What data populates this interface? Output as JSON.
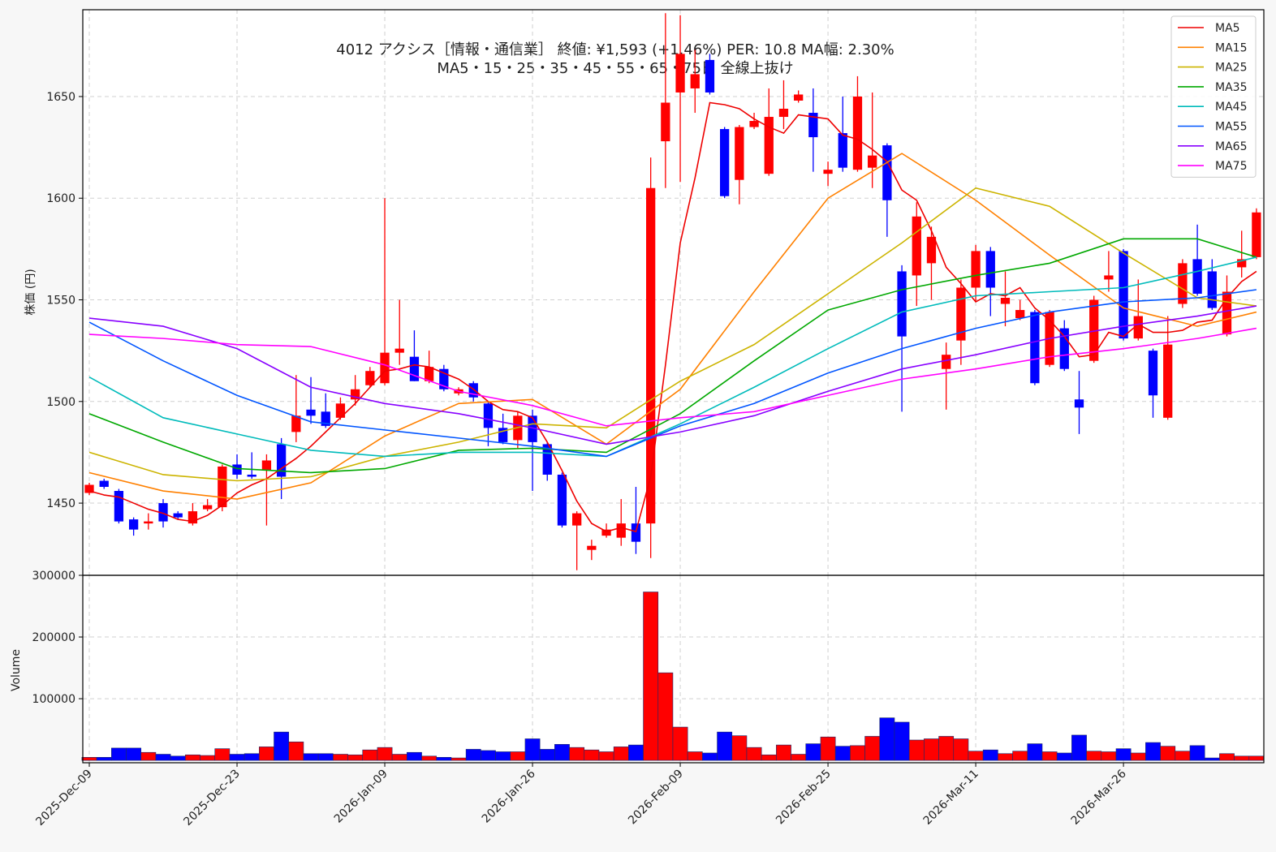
{
  "chart_data": [
    {
      "type": "candlestick",
      "title": "4012  アクシス［情報・通信業］ 終値: ¥1,593 (+1.46%)  PER: 10.8  MA幅: 2.30%",
      "subtitle": "MA5・15・25・35・45・55・65・75日 全線上抜け",
      "ylabel": "株価 (円)",
      "up_color": "#ff0000",
      "down_color": "#0000ff",
      "open": [
        1455,
        1461,
        1456,
        1442,
        1440,
        1450,
        1445,
        1440,
        1447,
        1448,
        1469,
        1464,
        1466,
        1479,
        1485,
        1496,
        1495,
        1492,
        1501,
        1508,
        1509,
        1524,
        1522,
        1510,
        1516,
        1504,
        1509,
        1499,
        1487,
        1481,
        1493,
        1479,
        1464,
        1439,
        1427,
        1434,
        1433,
        1440,
        1440,
        1628,
        1652,
        1654,
        1668,
        1634,
        1609,
        1635,
        1612,
        1640,
        1648,
        1642,
        1612,
        1632,
        1614,
        1615,
        1626,
        1564,
        1562,
        1568,
        1516,
        1530,
        1556,
        1574,
        1548,
        1541,
        1544,
        1518,
        1536,
        1501,
        1520,
        1560,
        1574,
        1531,
        1525,
        1492,
        1548,
        1570,
        1564,
        1533,
        1566,
        1571
      ],
      "high": [
        1460,
        1462,
        1457,
        1443,
        1445,
        1452,
        1446,
        1450,
        1452,
        1469,
        1474,
        1475,
        1474,
        1482,
        1513,
        1512,
        1504,
        1502,
        1513,
        1517,
        1600,
        1550,
        1535,
        1525,
        1518,
        1507,
        1510,
        1500,
        1494,
        1495,
        1496,
        1480,
        1465,
        1446,
        1432,
        1440,
        1452,
        1458,
        1620,
        1691,
        1690,
        1673,
        1671,
        1635,
        1636,
        1642,
        1654,
        1658,
        1653,
        1654,
        1618,
        1650,
        1660,
        1652,
        1627,
        1567,
        1598,
        1586,
        1529,
        1560,
        1577,
        1576,
        1564,
        1550,
        1545,
        1545,
        1540,
        1515,
        1552,
        1574,
        1575,
        1560,
        1526,
        1542,
        1570,
        1587,
        1570,
        1562,
        1584,
        1595
      ],
      "low": [
        1454,
        1457,
        1440,
        1434,
        1437,
        1438,
        1442,
        1439,
        1446,
        1446,
        1462,
        1462,
        1439,
        1452,
        1480,
        1489,
        1487,
        1491,
        1498,
        1507,
        1508,
        1518,
        1510,
        1509,
        1505,
        1503,
        1500,
        1478,
        1479,
        1477,
        1456,
        1461,
        1438,
        1417,
        1422,
        1433,
        1429,
        1425,
        1423,
        1605,
        1608,
        1642,
        1651,
        1600,
        1597,
        1634,
        1611,
        1634,
        1647,
        1613,
        1606,
        1613,
        1613,
        1605,
        1581,
        1495,
        1547,
        1550,
        1496,
        1518,
        1549,
        1542,
        1537,
        1540,
        1508,
        1517,
        1515,
        1484,
        1519,
        1554,
        1530,
        1530,
        1492,
        1491,
        1546,
        1552,
        1545,
        1532,
        1561,
        1570
      ],
      "close": [
        1459,
        1458,
        1441,
        1437,
        1441,
        1441,
        1443,
        1446,
        1449,
        1468,
        1464,
        1463,
        1471,
        1463,
        1493,
        1493,
        1488,
        1499,
        1506,
        1515,
        1524,
        1526,
        1510,
        1517,
        1506,
        1506,
        1502,
        1487,
        1480,
        1493,
        1480,
        1464,
        1439,
        1445,
        1429,
        1437,
        1440,
        1431,
        1605,
        1647,
        1671,
        1661,
        1652,
        1601,
        1635,
        1638,
        1640,
        1644,
        1651,
        1630,
        1614,
        1615,
        1650,
        1621,
        1599,
        1532,
        1591,
        1581,
        1523,
        1556,
        1574,
        1556,
        1551,
        1545,
        1509,
        1544,
        1516,
        1497,
        1550,
        1562,
        1531,
        1542,
        1503,
        1528,
        1568,
        1553,
        1546,
        1554,
        1570,
        1593
      ],
      "series": [
        {
          "name": "MA5",
          "color": "#ee0000",
          "values": [
            1456,
            1454,
            1453,
            1450,
            1447,
            1445,
            1442,
            1441,
            1444,
            1449,
            1455,
            1459,
            1462,
            1467,
            1472,
            1478,
            1485,
            1492,
            1499,
            1507,
            1515,
            1516,
            1518,
            1517,
            1514,
            1511,
            1506,
            1500,
            1496,
            1495,
            1492,
            1480,
            1466,
            1451,
            1440,
            1436,
            1438,
            1436,
            1463,
            1518,
            1578,
            1610,
            1647,
            1646,
            1644,
            1639,
            1635,
            1632,
            1641,
            1640,
            1639,
            1631,
            1629,
            1624,
            1618,
            1604,
            1599,
            1584,
            1566,
            1558,
            1549,
            1553,
            1552,
            1556,
            1546,
            1540,
            1532,
            1522,
            1523,
            1534,
            1532,
            1538,
            1534,
            1534,
            1535,
            1539,
            1540,
            1551,
            1559,
            1564
          ]
        },
        {
          "name": "MA15",
          "color": "#ff8000",
          "x": [
            0,
            5,
            10,
            15,
            20,
            25,
            30,
            35,
            40,
            45,
            50,
            55,
            60,
            65,
            70,
            75,
            79
          ],
          "values": [
            1465,
            1456,
            1452,
            1460,
            1483,
            1499,
            1501,
            1479,
            1506,
            1554,
            1600,
            1622,
            1599,
            1572,
            1546,
            1537,
            1544
          ]
        },
        {
          "name": "MA25",
          "color": "#ccb400",
          "x": [
            0,
            5,
            10,
            15,
            20,
            25,
            30,
            35,
            40,
            45,
            50,
            55,
            60,
            65,
            70,
            75,
            79
          ],
          "values": [
            1475,
            1464,
            1461,
            1463,
            1473,
            1480,
            1489,
            1487,
            1510,
            1528,
            1553,
            1578,
            1605,
            1596,
            1573,
            1551,
            1547
          ]
        },
        {
          "name": "MA35",
          "color": "#00a800",
          "x": [
            0,
            5,
            10,
            15,
            20,
            25,
            30,
            35,
            40,
            45,
            50,
            55,
            60,
            65,
            70,
            75,
            79
          ],
          "values": [
            1494,
            1480,
            1467,
            1465,
            1467,
            1476,
            1477,
            1475,
            1494,
            1520,
            1545,
            1555,
            1562,
            1568,
            1580,
            1580,
            1571
          ]
        },
        {
          "name": "MA45",
          "color": "#00bbbb",
          "x": [
            0,
            5,
            10,
            15,
            20,
            25,
            30,
            35,
            40,
            45,
            50,
            55,
            60,
            65,
            70,
            75,
            79
          ],
          "values": [
            1512,
            1492,
            1484,
            1476,
            1473,
            1475,
            1475,
            1473,
            1489,
            1507,
            1526,
            1544,
            1552,
            1554,
            1556,
            1564,
            1571
          ]
        },
        {
          "name": "MA55",
          "color": "#0055ff",
          "x": [
            0,
            5,
            10,
            15,
            20,
            25,
            30,
            35,
            40,
            45,
            50,
            55,
            60,
            65,
            70,
            75,
            79
          ],
          "values": [
            1539,
            1520,
            1503,
            1490,
            1486,
            1482,
            1478,
            1473,
            1488,
            1499,
            1514,
            1526,
            1536,
            1544,
            1549,
            1551,
            1555
          ]
        },
        {
          "name": "MA65",
          "color": "#8800ff",
          "x": [
            0,
            5,
            10,
            15,
            20,
            25,
            30,
            35,
            40,
            45,
            50,
            55,
            60,
            65,
            70,
            75,
            79
          ],
          "values": [
            1541,
            1537,
            1526,
            1507,
            1499,
            1494,
            1487,
            1479,
            1485,
            1493,
            1505,
            1516,
            1523,
            1531,
            1537,
            1542,
            1547
          ]
        },
        {
          "name": "MA75",
          "color": "#ff00ff",
          "x": [
            0,
            5,
            10,
            15,
            20,
            25,
            30,
            35,
            40,
            45,
            50,
            55,
            60,
            65,
            70,
            75,
            79
          ],
          "values": [
            1533,
            1531,
            1528,
            1527,
            1518,
            1505,
            1498,
            1488,
            1492,
            1495,
            1503,
            1511,
            1516,
            1522,
            1526,
            1531,
            1536
          ]
        }
      ],
      "xlim": [
        -0.44,
        79.5
      ],
      "ylim": [
        1414.5,
        1692.7
      ],
      "yticks": [
        1450,
        1500,
        1550,
        1600,
        1650
      ],
      "grid": true,
      "legend": "upper right"
    },
    {
      "type": "bar",
      "ylabel": "Volume",
      "categories": [
        "2025-Dec-09",
        null,
        null,
        null,
        null,
        null,
        null,
        null,
        null,
        null,
        "2025-Dec-23",
        null,
        null,
        null,
        null,
        null,
        null,
        null,
        null,
        null,
        "2026-Jan-09",
        null,
        null,
        null,
        null,
        null,
        null,
        null,
        null,
        null,
        "2026-Jan-26",
        null,
        null,
        null,
        null,
        null,
        null,
        null,
        null,
        null,
        "2026-Feb-09",
        null,
        null,
        null,
        null,
        null,
        null,
        null,
        null,
        null,
        "2026-Feb-25",
        null,
        null,
        null,
        null,
        null,
        null,
        null,
        null,
        null,
        "2026-Mar-11",
        null,
        null,
        null,
        null,
        null,
        null,
        null,
        null,
        null,
        "2026-Mar-26",
        null,
        null,
        null,
        null,
        null,
        null,
        null,
        null,
        null
      ],
      "values": [
        5000,
        5000,
        20000,
        20000,
        13000,
        10000,
        7000,
        9000,
        8000,
        19000,
        10000,
        11000,
        22000,
        46000,
        30000,
        11000,
        11000,
        10000,
        9000,
        17000,
        21000,
        10000,
        13000,
        7000,
        5000,
        4000,
        18000,
        16000,
        14000,
        14000,
        35000,
        18000,
        26000,
        21000,
        17000,
        14000,
        22000,
        25000,
        273000,
        142000,
        54000,
        14000,
        12000,
        46000,
        40000,
        21000,
        9000,
        25000,
        10000,
        27000,
        38000,
        23000,
        24000,
        39000,
        69000,
        62000,
        33000,
        35000,
        39000,
        35000,
        15000,
        17000,
        11000,
        15000,
        27000,
        14000,
        12000,
        41000,
        15000,
        14000,
        19000,
        12000,
        29000,
        23000,
        15000,
        24000,
        4000,
        11000,
        7000,
        7000
      ],
      "xlim": [
        -0.44,
        79.5
      ],
      "ylim": [
        -3800,
        300000
      ],
      "yticks": [
        100000,
        200000,
        300000
      ],
      "grid": true
    }
  ]
}
